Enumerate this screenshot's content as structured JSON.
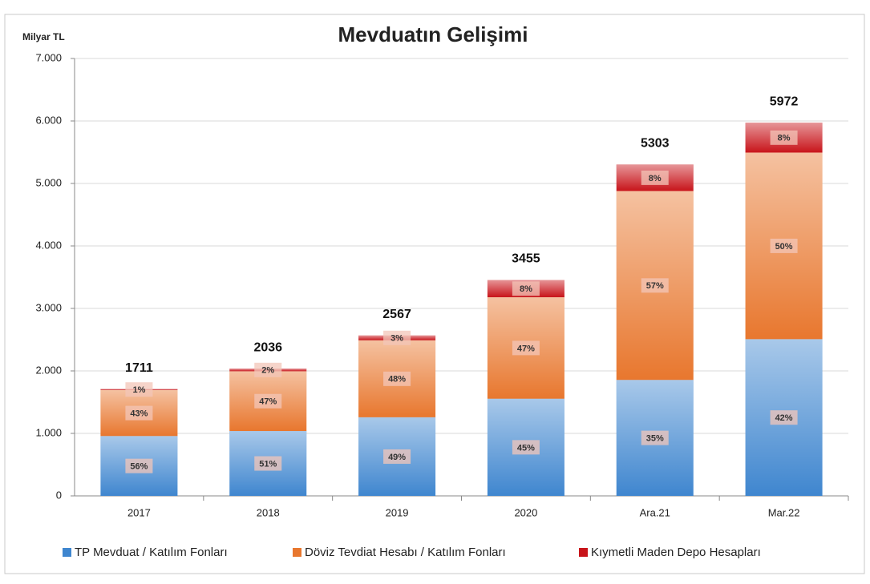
{
  "chart_data": {
    "type": "stacked_bar",
    "title": "Mevduatın Gelişimi",
    "y_label": "Milyar TL",
    "categories": [
      "2017",
      "2018",
      "2019",
      "2020",
      "Ara.21",
      "Mar.22"
    ],
    "series": [
      {
        "name": "TP Mevduat / Katılım Fonları",
        "color": "#3f86cf",
        "values": [
          958,
          1038,
          1258,
          1555,
          1856,
          2508
        ],
        "labels": [
          "56%",
          "51%",
          "49%",
          "45%",
          "35%",
          "42%"
        ]
      },
      {
        "name": "Döviz Tevdiat Hesabı / Katılım Fonları",
        "color": "#e8772e",
        "values": [
          736,
          957,
          1232,
          1624,
          3023,
          2986
        ],
        "labels": [
          "43%",
          "47%",
          "48%",
          "47%",
          "57%",
          "50%"
        ]
      },
      {
        "name": "Kıymetli Maden Depo Hesapları",
        "color": "#c8141a",
        "values": [
          17,
          41,
          77,
          276,
          424,
          478
        ],
        "labels": [
          "1%",
          "2%",
          "3%",
          "8%",
          "8%",
          "8%"
        ]
      }
    ],
    "totals": [
      1711,
      2036,
      2567,
      3455,
      5303,
      5972
    ],
    "ylim": [
      0,
      7000
    ],
    "yticks": [
      0,
      {
        "value": 1000,
        "label": "1.000"
      },
      {
        "value": 2000,
        "label": "2.000"
      },
      {
        "value": 3000,
        "label": "3.000"
      },
      {
        "value": 4000,
        "label": "4.000"
      },
      {
        "value": 5000,
        "label": "5.000"
      },
      {
        "value": 6000,
        "label": "6.000"
      },
      {
        "value": 7000,
        "label": "7.000"
      }
    ],
    "grid": true
  }
}
